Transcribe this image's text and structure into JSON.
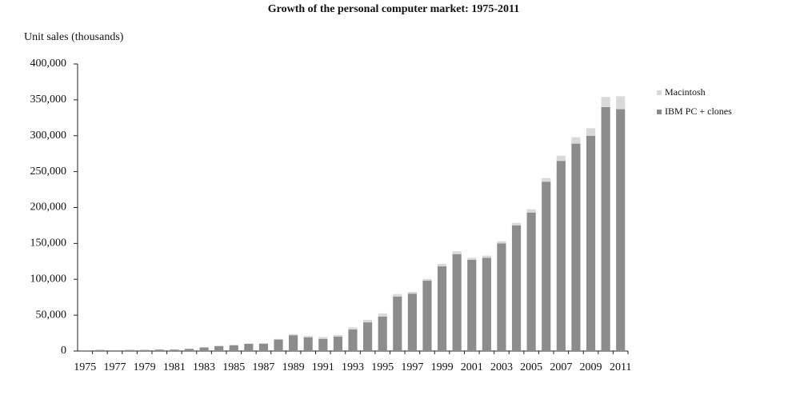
{
  "chart_data": {
    "type": "stacked-bar",
    "title": "Growth of the personal computer market: 1975-2011",
    "y_label": "Unit sales (thousands)",
    "categories": [
      "1975",
      null,
      "1977",
      null,
      "1979",
      null,
      "1981",
      null,
      "1983",
      null,
      "1985",
      null,
      "1987",
      null,
      "1989",
      null,
      "1991",
      null,
      "1993",
      null,
      "1995",
      null,
      "1997",
      null,
      "1999",
      null,
      "2001",
      null,
      "2003",
      null,
      "2005",
      null,
      "2007",
      null,
      "2009",
      null,
      "2011"
    ],
    "series": [
      {
        "name": "IBM PC + clones",
        "color": "#8c8c8c",
        "values": [
          1000,
          1500,
          1000,
          1500,
          1500,
          2000,
          2000,
          3000,
          5000,
          7000,
          8000,
          10000,
          10000,
          16000,
          22000,
          19000,
          17000,
          20000,
          30000,
          40000,
          48000,
          76000,
          80000,
          98000,
          118000,
          135000,
          127000,
          130000,
          150000,
          175000,
          193000,
          236000,
          265000,
          289000,
          300000,
          340000,
          337000
        ]
      },
      {
        "name": "Macintosh",
        "color": "#d9d9d9",
        "values": [
          0,
          0,
          0,
          0,
          0,
          0,
          0,
          0,
          0,
          300,
          500,
          500,
          1000,
          1000,
          1500,
          2000,
          2500,
          2500,
          3000,
          3500,
          4500,
          3500,
          2500,
          2500,
          3500,
          4000,
          3000,
          3000,
          3000,
          3500,
          4500,
          5000,
          7000,
          9000,
          10500,
          14000,
          18000
        ]
      }
    ],
    "ylim": [
      0,
      400000
    ],
    "yticks": [
      0,
      {
        "value": 50000,
        "label": "50,000"
      },
      {
        "value": 100000,
        "label": "100,000"
      },
      {
        "value": 150000,
        "label": "150,000"
      },
      {
        "value": 200000,
        "label": "200,000"
      },
      {
        "value": 250000,
        "label": "250,000"
      },
      {
        "value": 300000,
        "label": "300,000"
      },
      {
        "value": 350000,
        "label": "350,000"
      },
      {
        "value": 400000,
        "label": "400,000"
      }
    ]
  }
}
